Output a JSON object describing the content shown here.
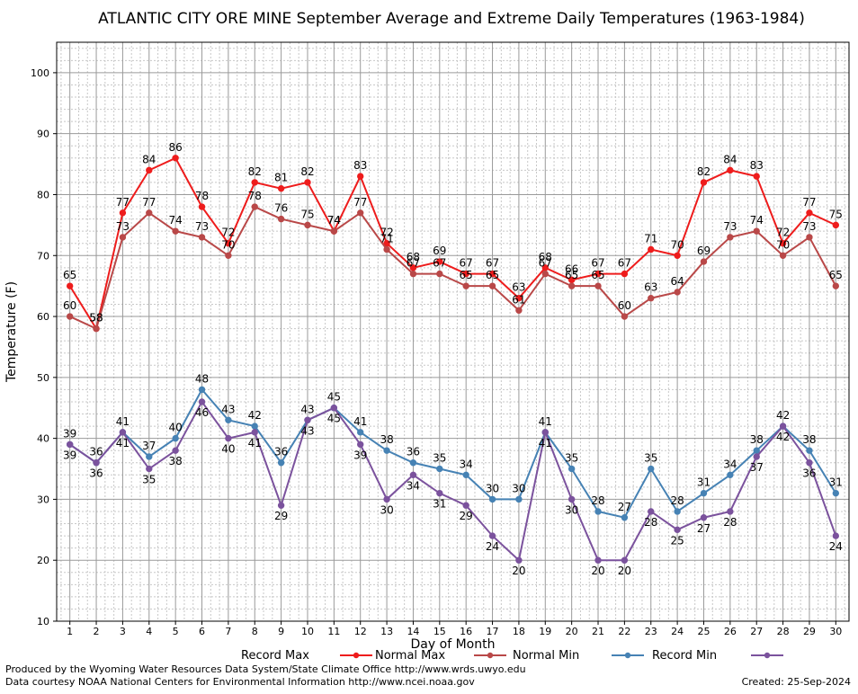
{
  "chart_data": {
    "type": "line",
    "title": "ATLANTIC CITY ORE MINE September Average and Extreme Daily Temperatures (1963-1984)",
    "xlabel": "Day of Month",
    "ylabel": "Temperature (F)",
    "ylim": [
      10,
      105
    ],
    "xlim": [
      0.5,
      30.5
    ],
    "yticks": [
      10,
      20,
      30,
      40,
      50,
      60,
      70,
      80,
      90,
      100
    ],
    "x": [
      1,
      2,
      3,
      4,
      5,
      6,
      7,
      8,
      9,
      10,
      11,
      12,
      13,
      14,
      15,
      16,
      17,
      18,
      19,
      20,
      21,
      22,
      23,
      24,
      25,
      26,
      27,
      28,
      29,
      30
    ],
    "grid": true,
    "legend_position": "bottom",
    "series": [
      {
        "name": "Record Max",
        "color": "#ee1c1c",
        "values": [
          65,
          58,
          77,
          84,
          86,
          78,
          72,
          82,
          81,
          82,
          74,
          83,
          72,
          68,
          69,
          67,
          67,
          63,
          68,
          66,
          67,
          67,
          71,
          70,
          82,
          84,
          83,
          72,
          77,
          75
        ]
      },
      {
        "name": "Normal Max",
        "color": "#b94848",
        "values": [
          60,
          58,
          73,
          77,
          74,
          73,
          70,
          78,
          76,
          75,
          74,
          77,
          71,
          67,
          67,
          65,
          65,
          61,
          67,
          65,
          65,
          60,
          63,
          64,
          69,
          73,
          74,
          70,
          73,
          65
        ]
      },
      {
        "name": "Normal Min",
        "color": "#4682b4",
        "values": [
          39,
          36,
          41,
          37,
          40,
          48,
          43,
          42,
          36,
          43,
          45,
          41,
          38,
          36,
          35,
          34,
          30,
          30,
          41,
          35,
          28,
          27,
          35,
          28,
          31,
          34,
          38,
          42,
          38,
          31
        ]
      },
      {
        "name": "Record Min",
        "color": "#7b529d",
        "values": [
          39,
          36,
          41,
          35,
          38,
          46,
          40,
          41,
          29,
          43,
          45,
          39,
          30,
          34,
          31,
          29,
          24,
          20,
          41,
          30,
          20,
          20,
          28,
          25,
          27,
          28,
          37,
          42,
          36,
          24
        ]
      }
    ]
  },
  "footer": {
    "produced_by": "Produced by the Wyoming Water Resources Data System/State Climate Office http://www.wrds.uwyo.edu",
    "data_courtesy": "Data courtesy NOAA National Centers for Environmental Information http://www.ncei.noaa.gov",
    "created": "Created: 25-Sep-2024"
  }
}
